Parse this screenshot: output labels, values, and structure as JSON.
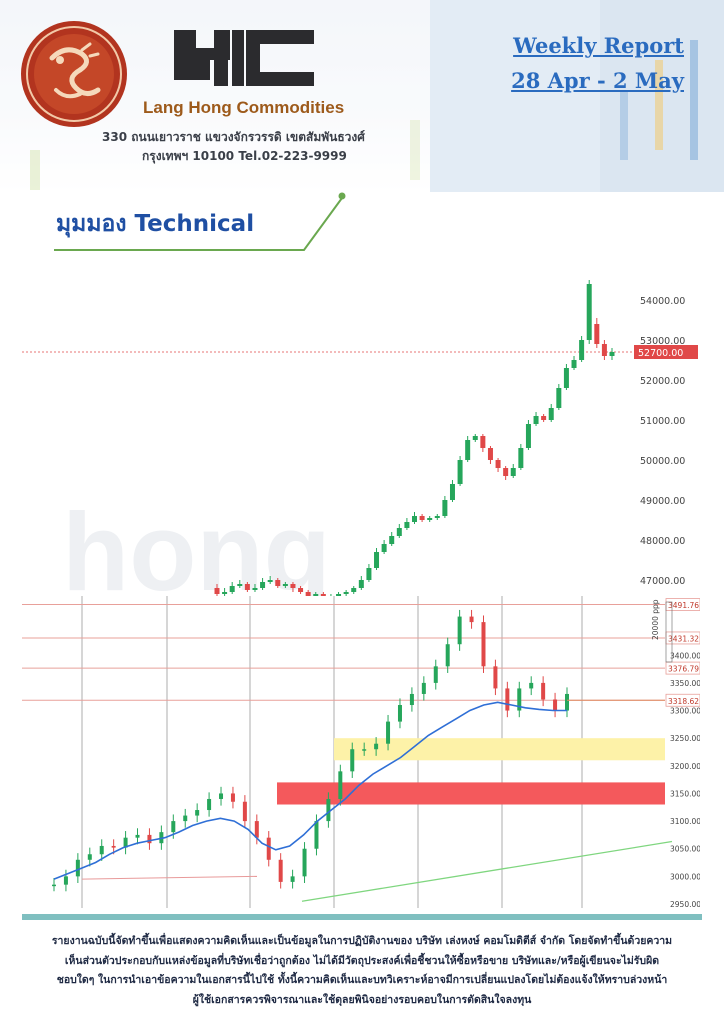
{
  "header": {
    "company_name": "Lang Hong Commodities",
    "brand_mark": "LHC",
    "address_line_1": "330 ถนนเยาวราช แขวงจักรวรรดิ เขตสัมพันธวงศ์",
    "address_line_2": "กรุงเทพฯ 10100 Tel.02-223-9999",
    "report_title_1": "Weekly Report",
    "report_title_2": "28 Apr - 2 May"
  },
  "section": {
    "title": "มุมมอง Technical"
  },
  "colors": {
    "accent_blue": "#2a6bbf",
    "brand_brown": "#9d5a1b",
    "up_candle": "#26a65b",
    "down_candle": "#e04848",
    "support_zone": "#fdf2a8",
    "resistance_zone": "#f4595c",
    "footer_bar": "#7fbfc0"
  },
  "chart_data": [
    {
      "type": "candlestick",
      "title": "",
      "y_axis_ticks": [
        "54000.00",
        "53000.00",
        "52000.00",
        "51000.00",
        "50000.00",
        "49000.00",
        "48000.00",
        "47000.00"
      ],
      "ylim": [
        46700,
        54500
      ],
      "current_price_label": "52700.00",
      "current_price": 52700,
      "candles": [
        [
          46800,
          46650,
          46900,
          46600
        ],
        [
          46650,
          46700,
          46800,
          46550
        ],
        [
          46700,
          46850,
          46950,
          46650
        ],
        [
          46850,
          46900,
          47000,
          46800
        ],
        [
          46900,
          46750,
          46950,
          46700
        ],
        [
          46750,
          46800,
          46900,
          46700
        ],
        [
          46800,
          46950,
          47050,
          46750
        ],
        [
          46950,
          47000,
          47100,
          46900
        ],
        [
          47000,
          46850,
          47050,
          46800
        ],
        [
          46850,
          46900,
          46950,
          46800
        ],
        [
          46900,
          46800,
          46950,
          46700
        ],
        [
          46800,
          46700,
          46850,
          46650
        ],
        [
          46700,
          46600,
          46750,
          46550
        ],
        [
          46600,
          46650,
          46700,
          46550
        ],
        [
          46650,
          46550,
          46700,
          46500
        ],
        [
          46550,
          46600,
          46650,
          46500
        ],
        [
          46600,
          46650,
          46700,
          46550
        ],
        [
          46650,
          46700,
          46750,
          46600
        ],
        [
          46700,
          46800,
          46850,
          46650
        ],
        [
          46800,
          47000,
          47100,
          46750
        ],
        [
          47000,
          47300,
          47400,
          46950
        ],
        [
          47300,
          47700,
          47800,
          47250
        ],
        [
          47700,
          47900,
          48000,
          47650
        ],
        [
          47900,
          48100,
          48200,
          47850
        ],
        [
          48100,
          48300,
          48400,
          48050
        ],
        [
          48300,
          48450,
          48550,
          48250
        ],
        [
          48450,
          48600,
          48700,
          48400
        ],
        [
          48600,
          48500,
          48650,
          48450
        ],
        [
          48500,
          48550,
          48600,
          48450
        ],
        [
          48550,
          48600,
          48650,
          48500
        ],
        [
          48600,
          49000,
          49100,
          48550
        ],
        [
          49000,
          49400,
          49500,
          48950
        ],
        [
          49400,
          50000,
          50100,
          49350
        ],
        [
          50000,
          50500,
          50600,
          49950
        ],
        [
          50500,
          50600,
          50650,
          50450
        ],
        [
          50600,
          50300,
          50650,
          50200
        ],
        [
          50300,
          50000,
          50350,
          49900
        ],
        [
          50000,
          49800,
          50050,
          49700
        ],
        [
          49800,
          49600,
          49850,
          49500
        ],
        [
          49600,
          49800,
          49900,
          49550
        ],
        [
          49800,
          50300,
          50400,
          49750
        ],
        [
          50300,
          50900,
          51000,
          50250
        ],
        [
          50900,
          51100,
          51200,
          50850
        ],
        [
          51100,
          51000,
          51150,
          50950
        ],
        [
          51000,
          51300,
          51400,
          50950
        ],
        [
          51300,
          51800,
          51900,
          51250
        ],
        [
          51800,
          52300,
          52400,
          51750
        ],
        [
          52300,
          52500,
          52600,
          52250
        ],
        [
          52500,
          53000,
          53100,
          52450
        ],
        [
          53000,
          54400,
          54500,
          52900
        ],
        [
          53400,
          52900,
          53550,
          52800
        ],
        [
          52900,
          52600,
          53000,
          52500
        ],
        [
          52600,
          52700,
          52800,
          52500
        ]
      ]
    },
    {
      "type": "line",
      "title": "",
      "y_axis_ticks": [
        "3400.00",
        "3350.00",
        "3300.00",
        "3250.00",
        "3200.00",
        "3150.00",
        "3100.00",
        "3050.00",
        "3000.00",
        "2950.00"
      ],
      "ylim": [
        2950,
        3500
      ],
      "price_level_labels": [
        "3491.76",
        "3431.32",
        "3376.79",
        "3318.62"
      ],
      "top_right_label": "20000 ppp",
      "support_zone": [
        3210,
        3250
      ],
      "resistance_zone": [
        3130,
        3170
      ],
      "moving_average_values": [
        2995,
        3005,
        3015,
        3025,
        3040,
        3052,
        3060,
        3065,
        3070,
        3080,
        3092,
        3100,
        3105,
        3100,
        3085,
        3060,
        3048,
        3055,
        3075,
        3100,
        3120,
        3140,
        3165,
        3185,
        3200,
        3215,
        3235,
        3255,
        3270,
        3285,
        3300,
        3310,
        3315,
        3310,
        3305,
        3302,
        3300,
        3300
      ],
      "price_values": [
        2985,
        3000,
        3030,
        3040,
        3055,
        3052,
        3070,
        3075,
        3060,
        3080,
        3100,
        3110,
        3120,
        3140,
        3150,
        3135,
        3100,
        3070,
        3030,
        2990,
        3000,
        3050,
        3100,
        3140,
        3190,
        3230,
        3230,
        3240,
        3280,
        3310,
        3330,
        3350,
        3380,
        3420,
        3470,
        3460,
        3380,
        3340,
        3300,
        3340,
        3350,
        3320,
        3300,
        3330
      ]
    }
  ],
  "footer": {
    "disclaimer_1": "รายงานฉบับนี้จัดทำขึ้นเพื่อแสดงความคิดเห็นและเป็นข้อมูลในการปฏิบัติงานของ บริษัท เล่งหงษ์ คอมโมดิตีส์ จำกัด โดยจัดทำขึ้นด้วยความ",
    "disclaimer_2": "เห็นส่วนตัวประกอบกับแหล่งข้อมูลที่บริษัทเชื่อว่าถูกต้อง ไม่ได้มีวัตถุประสงค์เพื่อชี้ชวนให้ซื้อหรือขาย บริษัทและ/หรือผู้เขียนจะไม่รับผิด",
    "disclaimer_3": "ชอบใดๆ ในการนำเอาข้อความในเอกสารนี้ไปใช้ ทั้งนี้ความคิดเห็นและบทวิเคราะห์อาจมีการเปลี่ยนแปลงโดยไม่ต้องแจ้งให้ทราบล่วงหน้า",
    "disclaimer_4": "ผู้ใช้เอกสารควรพิจารณาและใช้ดุลยพินิจอย่างรอบคอบในการตัดสินใจลงทุน"
  }
}
